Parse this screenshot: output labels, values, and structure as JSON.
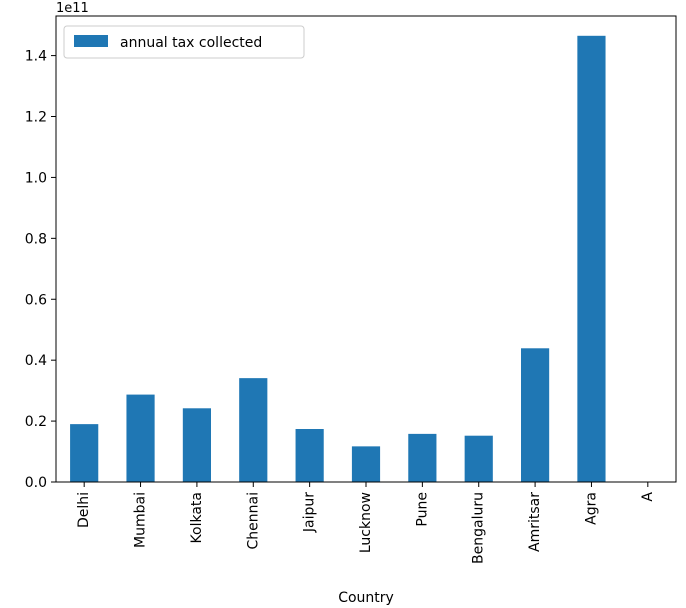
{
  "chart_data": {
    "type": "bar",
    "title": "",
    "xlabel": "Country",
    "ylabel": "",
    "scale_label": "1e11",
    "categories": [
      "Delhi",
      "Mumbai",
      "Kolkata",
      "Chennai",
      "Jaipur",
      "Lucknow",
      "Pune",
      "Bengaluru",
      "Amritsar",
      "Agra",
      "A"
    ],
    "series": [
      {
        "name": "annual tax collected",
        "color": "#1f77b4",
        "values": [
          19000000000,
          28700000000,
          24200000000,
          34100000000,
          17400000000,
          11700000000,
          15800000000,
          15200000000,
          43900000000,
          146500000000,
          0
        ]
      }
    ],
    "ylim": [
      0,
      153000000000
    ],
    "yticks": [
      0,
      20000000000,
      40000000000,
      60000000000,
      80000000000,
      100000000000,
      120000000000,
      140000000000
    ],
    "ytick_labels": [
      "0.0",
      "0.2",
      "0.4",
      "0.6",
      "0.8",
      "1.0",
      "1.2",
      "1.4"
    ],
    "legend_position": "top-left",
    "grid": false
  }
}
